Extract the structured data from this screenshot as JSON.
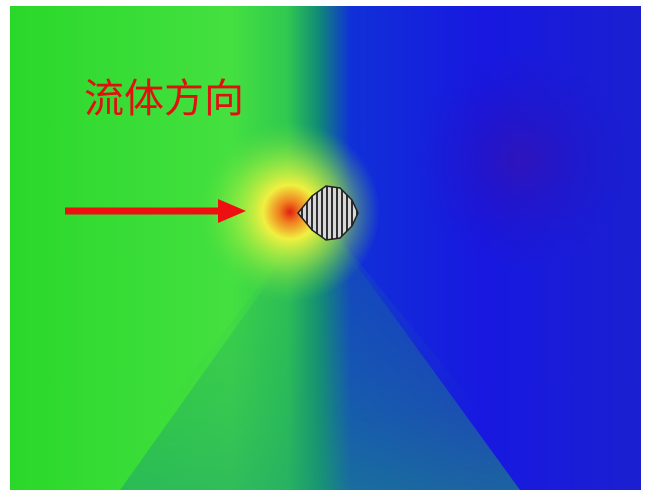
{
  "label": "流体方向"
}
